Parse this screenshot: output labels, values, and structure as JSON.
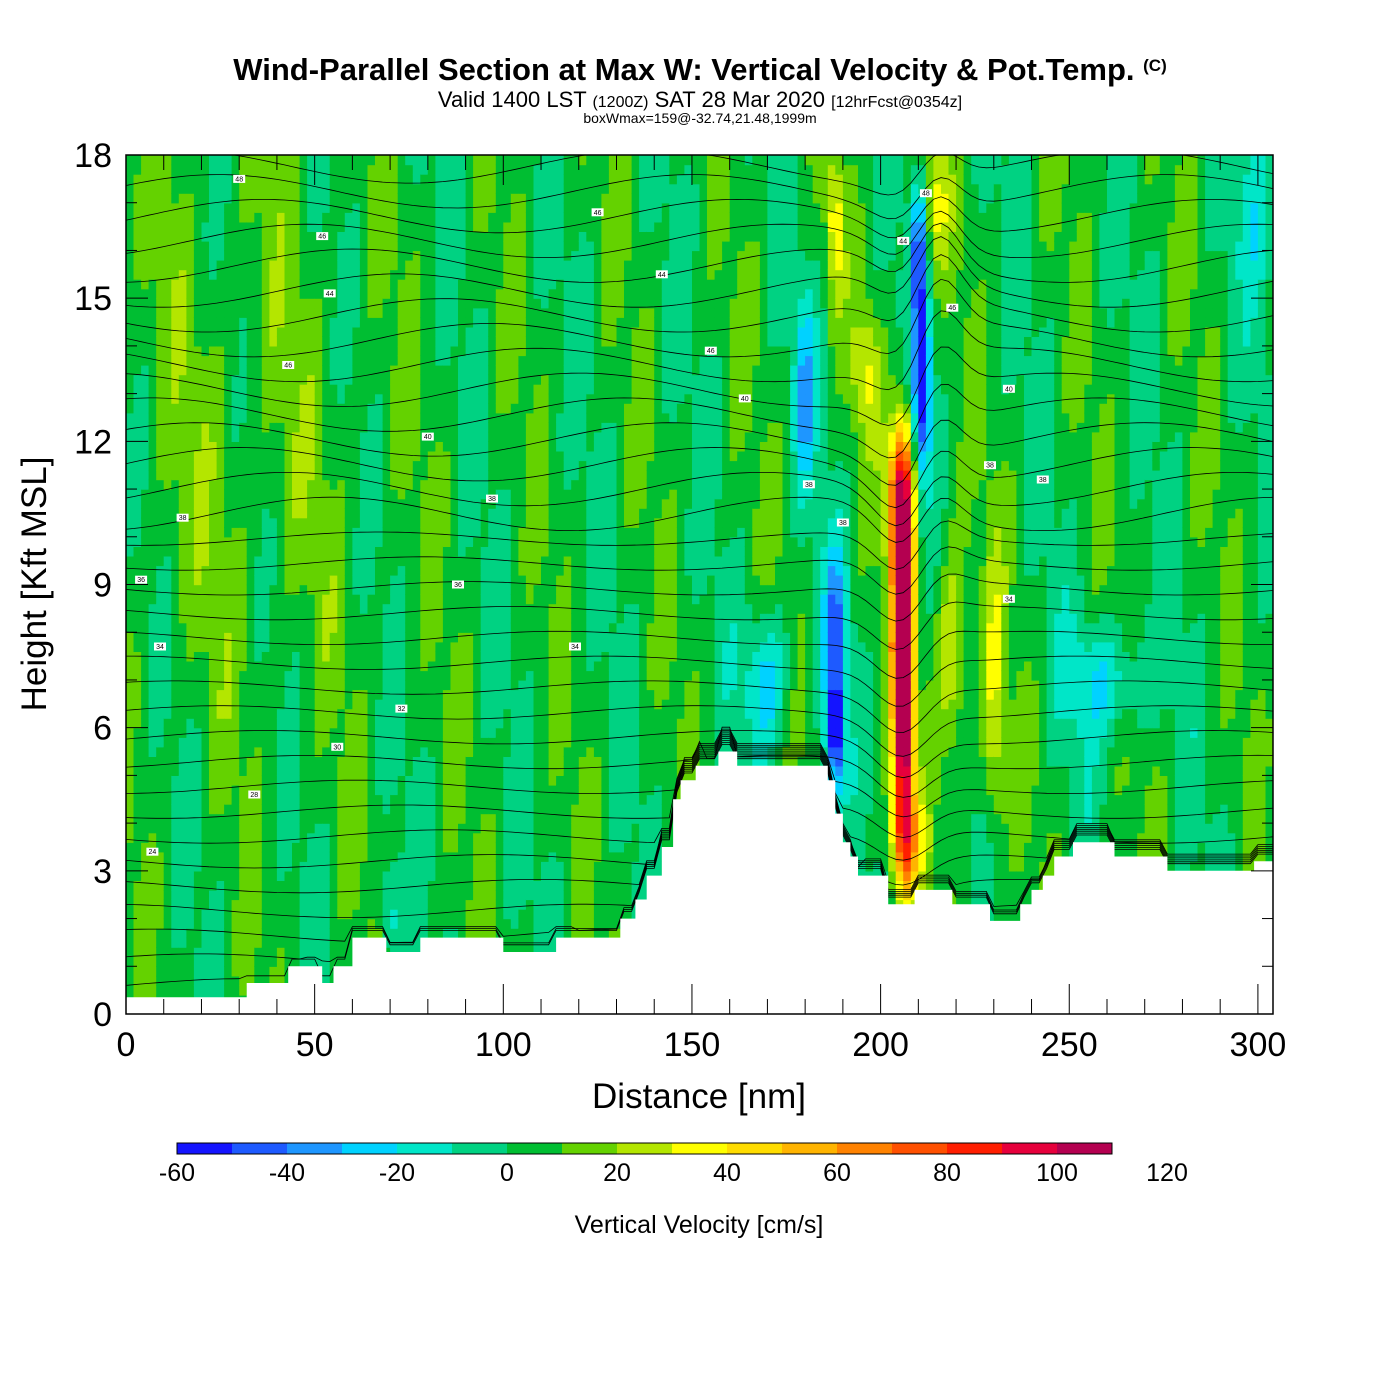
{
  "title": {
    "main": "Wind-Parallel Section at Max W: Vertical Velocity & Pot.Temp.",
    "copyright": "(C)",
    "valid_prefix": "Valid 1400 LST",
    "valid_utc": "(1200Z)",
    "valid_date": "SAT 28 Mar 2020",
    "forecast": "[12hrFcst@0354z]",
    "box_wmax": "boxWmax=159@-32.74,21.48,1999m"
  },
  "chart_data": {
    "type": "heatmap",
    "xlabel": "Distance [nm]",
    "ylabel": "Height [Kft MSL]",
    "xlim": [
      0,
      304
    ],
    "ylim": [
      0,
      18
    ],
    "x_ticks": [
      0,
      50,
      100,
      150,
      200,
      250,
      300
    ],
    "y_ticks": [
      0,
      3,
      6,
      9,
      12,
      15,
      18
    ],
    "colorbar": {
      "label": "Vertical Velocity [cm/s]",
      "levels": [
        -60,
        -50,
        -40,
        -30,
        -20,
        -10,
        0,
        10,
        20,
        30,
        40,
        50,
        60,
        70,
        80,
        90,
        100,
        110,
        120,
        130
      ],
      "tick_labels": [
        "-60",
        "-40",
        "-20",
        "0",
        "20",
        "40",
        "60",
        "80",
        "100",
        "120"
      ],
      "colors": [
        "#1414ff",
        "#1e5aff",
        "#1e96ff",
        "#00d2ff",
        "#00e6c8",
        "#00d282",
        "#00be32",
        "#64d200",
        "#b4e600",
        "#ffff00",
        "#ffdc00",
        "#ffb400",
        "#ff8200",
        "#ff5000",
        "#ff1e00",
        "#e6003c",
        "#b40050"
      ]
    },
    "terrain_kft": [
      [
        0,
        0.35
      ],
      [
        32,
        0.35
      ],
      [
        32,
        0.65
      ],
      [
        43,
        0.65
      ],
      [
        43,
        1.0
      ],
      [
        52,
        1.0
      ],
      [
        52,
        0.65
      ],
      [
        55,
        0.65
      ],
      [
        55,
        1.0
      ],
      [
        60,
        1.0
      ],
      [
        60,
        1.6
      ],
      [
        69,
        1.6
      ],
      [
        69,
        1.3
      ],
      [
        78,
        1.3
      ],
      [
        78,
        1.6
      ],
      [
        100,
        1.6
      ],
      [
        100,
        1.3
      ],
      [
        114,
        1.3
      ],
      [
        114,
        1.6
      ],
      [
        131,
        1.6
      ],
      [
        131,
        2.0
      ],
      [
        135,
        2.0
      ],
      [
        135,
        2.4
      ],
      [
        138,
        2.4
      ],
      [
        138,
        2.9
      ],
      [
        142,
        2.9
      ],
      [
        142,
        3.5
      ],
      [
        145,
        3.5
      ],
      [
        145,
        4.5
      ],
      [
        147,
        4.5
      ],
      [
        147,
        4.9
      ],
      [
        151,
        4.9
      ],
      [
        151,
        5.2
      ],
      [
        157,
        5.2
      ],
      [
        157,
        5.5
      ],
      [
        162,
        5.5
      ],
      [
        162,
        5.2
      ],
      [
        186,
        5.2
      ],
      [
        186,
        4.9
      ],
      [
        188,
        4.9
      ],
      [
        188,
        4.2
      ],
      [
        190,
        4.2
      ],
      [
        190,
        3.6
      ],
      [
        192,
        3.6
      ],
      [
        192,
        3.3
      ],
      [
        194,
        3.3
      ],
      [
        194,
        2.9
      ],
      [
        202,
        2.9
      ],
      [
        202,
        2.3
      ],
      [
        209,
        2.3
      ],
      [
        209,
        2.6
      ],
      [
        219,
        2.6
      ],
      [
        219,
        2.3
      ],
      [
        229,
        2.3
      ],
      [
        229,
        1.95
      ],
      [
        237,
        1.95
      ],
      [
        237,
        2.3
      ],
      [
        240,
        2.3
      ],
      [
        240,
        2.6
      ],
      [
        243,
        2.6
      ],
      [
        243,
        2.9
      ],
      [
        246,
        2.9
      ],
      [
        246,
        3.3
      ],
      [
        251,
        3.3
      ],
      [
        251,
        3.6
      ],
      [
        262,
        3.6
      ],
      [
        262,
        3.3
      ],
      [
        276,
        3.3
      ],
      [
        276,
        3.0
      ],
      [
        299,
        3.0
      ],
      [
        299,
        3.2
      ],
      [
        304,
        3.2
      ]
    ],
    "vertical_velocity_features": [
      {
        "x_nm": 206,
        "z_kft": 7.5,
        "peak_cm_s": 159
      },
      {
        "x_nm": 211,
        "z_kft": 13.0,
        "peak_cm_s": -60
      },
      {
        "x_nm": 188,
        "z_kft": 5.8,
        "peak_cm_s": -55
      }
    ],
    "pot_temp_contour_labels": [
      {
        "x": 30,
        "z": 17.5,
        "text": "48"
      },
      {
        "x": 52,
        "z": 16.3,
        "text": "46"
      },
      {
        "x": 125,
        "z": 16.8,
        "text": "46"
      },
      {
        "x": 54,
        "z": 15.1,
        "text": "44"
      },
      {
        "x": 142,
        "z": 15.5,
        "text": "44"
      },
      {
        "x": 43,
        "z": 13.6,
        "text": "46"
      },
      {
        "x": 155,
        "z": 13.9,
        "text": "46"
      },
      {
        "x": 164,
        "z": 12.9,
        "text": "40"
      },
      {
        "x": 80,
        "z": 12.1,
        "text": "40"
      },
      {
        "x": 97,
        "z": 10.8,
        "text": "38"
      },
      {
        "x": 15,
        "z": 10.4,
        "text": "38"
      },
      {
        "x": 181,
        "z": 11.1,
        "text": "38"
      },
      {
        "x": 190,
        "z": 10.3,
        "text": "38"
      },
      {
        "x": 4,
        "z": 9.1,
        "text": "36"
      },
      {
        "x": 88,
        "z": 9.0,
        "text": "36"
      },
      {
        "x": 9,
        "z": 7.7,
        "text": "34"
      },
      {
        "x": 119,
        "z": 7.7,
        "text": "34"
      },
      {
        "x": 73,
        "z": 6.4,
        "text": "32"
      },
      {
        "x": 56,
        "z": 5.6,
        "text": "30"
      },
      {
        "x": 34,
        "z": 4.6,
        "text": "28"
      },
      {
        "x": 7,
        "z": 3.4,
        "text": "24"
      },
      {
        "x": 212,
        "z": 17.2,
        "text": "48"
      },
      {
        "x": 206,
        "z": 16.2,
        "text": "44"
      },
      {
        "x": 219,
        "z": 14.8,
        "text": "46"
      },
      {
        "x": 234,
        "z": 13.1,
        "text": "40"
      },
      {
        "x": 229,
        "z": 11.5,
        "text": "38"
      },
      {
        "x": 243,
        "z": 11.2,
        "text": "38"
      },
      {
        "x": 234,
        "z": 8.7,
        "text": "34"
      }
    ]
  }
}
